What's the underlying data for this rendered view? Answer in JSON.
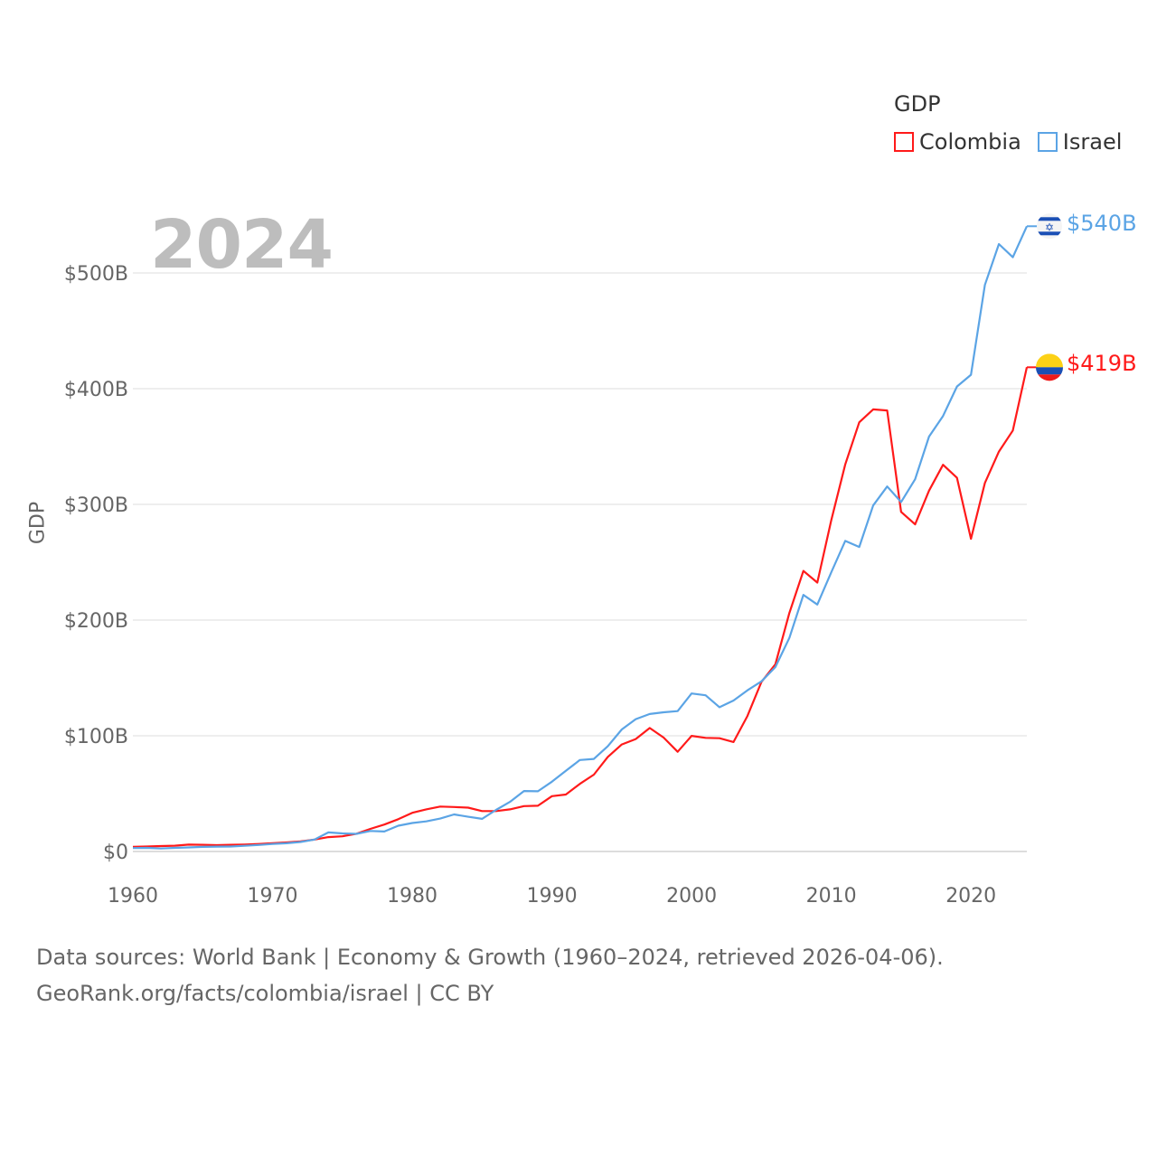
{
  "chart_data": {
    "type": "line",
    "title": "GDP",
    "ylabel": "GDP",
    "xlabel": "",
    "current_year": "2024",
    "xlim": [
      1960,
      2024
    ],
    "ylim": [
      0,
      550
    ],
    "x_ticks": [
      1960,
      1970,
      1980,
      1990,
      2000,
      2010,
      2020
    ],
    "y_ticks": [
      {
        "v": 0,
        "label": "$0"
      },
      {
        "v": 100,
        "label": "$100B"
      },
      {
        "v": 200,
        "label": "$200B"
      },
      {
        "v": 300,
        "label": "$300B"
      },
      {
        "v": 400,
        "label": "$400B"
      },
      {
        "v": 500,
        "label": "$500B"
      }
    ],
    "grid": true,
    "legend_position": "top-right",
    "x": [
      1960,
      1961,
      1962,
      1963,
      1964,
      1965,
      1966,
      1967,
      1968,
      1969,
      1970,
      1971,
      1972,
      1973,
      1974,
      1975,
      1976,
      1977,
      1978,
      1979,
      1980,
      1981,
      1982,
      1983,
      1984,
      1985,
      1986,
      1987,
      1988,
      1989,
      1990,
      1991,
      1992,
      1993,
      1994,
      1995,
      1996,
      1997,
      1998,
      1999,
      2000,
      2001,
      2002,
      2003,
      2004,
      2005,
      2006,
      2007,
      2008,
      2009,
      2010,
      2011,
      2012,
      2013,
      2014,
      2015,
      2016,
      2017,
      2018,
      2019,
      2020,
      2021,
      2022,
      2023,
      2024
    ],
    "series": [
      {
        "name": "Colombia",
        "color": "#ff1a1a",
        "end_label": "$419B",
        "values": [
          4.0,
          4.3,
          4.7,
          5.0,
          5.9,
          5.8,
          5.5,
          5.8,
          6.0,
          6.5,
          7.2,
          7.8,
          8.7,
          10.3,
          12.4,
          13.1,
          15.3,
          19.5,
          23.3,
          27.9,
          33.4,
          36.4,
          38.8,
          38.4,
          37.9,
          34.9,
          34.9,
          36.4,
          39.2,
          39.5,
          47.8,
          49.2,
          58.4,
          66.4,
          81.7,
          92.5,
          97.2,
          106.7,
          98.4,
          86.2,
          99.9,
          98.2,
          97.9,
          94.6,
          117.1,
          146.6,
          161.8,
          206.2,
          242.5,
          232.4,
          286.5,
          334.5,
          370.9,
          382.1,
          381.2,
          293.5,
          282.7,
          311.9,
          334.2,
          323.0,
          270.2,
          318.5,
          345.6,
          363.8,
          418.5
        ]
      },
      {
        "name": "Israel",
        "color": "#5ba4e5",
        "end_label": "$540B",
        "values": [
          3.0,
          3.1,
          2.6,
          3.1,
          3.5,
          4.0,
          4.2,
          4.3,
          4.9,
          5.6,
          6.5,
          7.1,
          8.2,
          10.3,
          16.5,
          15.6,
          15.2,
          17.7,
          17.3,
          22.3,
          24.6,
          26.0,
          28.4,
          32.0,
          30.0,
          28.2,
          35.9,
          42.9,
          52.3,
          52.0,
          60.3,
          69.7,
          79.1,
          80.0,
          90.9,
          105.5,
          114.4,
          118.8,
          120.3,
          121.3,
          136.6,
          135.0,
          124.7,
          130.5,
          139.3,
          147.0,
          159.4,
          184.6,
          221.8,
          213.4,
          241.4,
          268.4,
          263.2,
          299.1,
          315.5,
          302.0,
          321.7,
          358.6,
          376.4,
          401.9,
          412.0,
          489.7,
          525.0,
          513.6,
          540.4
        ]
      }
    ]
  },
  "footer": {
    "line1": "Data sources: World Bank | Economy & Growth (1960–2024, retrieved 2026-04-06).",
    "line2": "GeoRank.org/facts/colombia/israel | CC BY"
  }
}
